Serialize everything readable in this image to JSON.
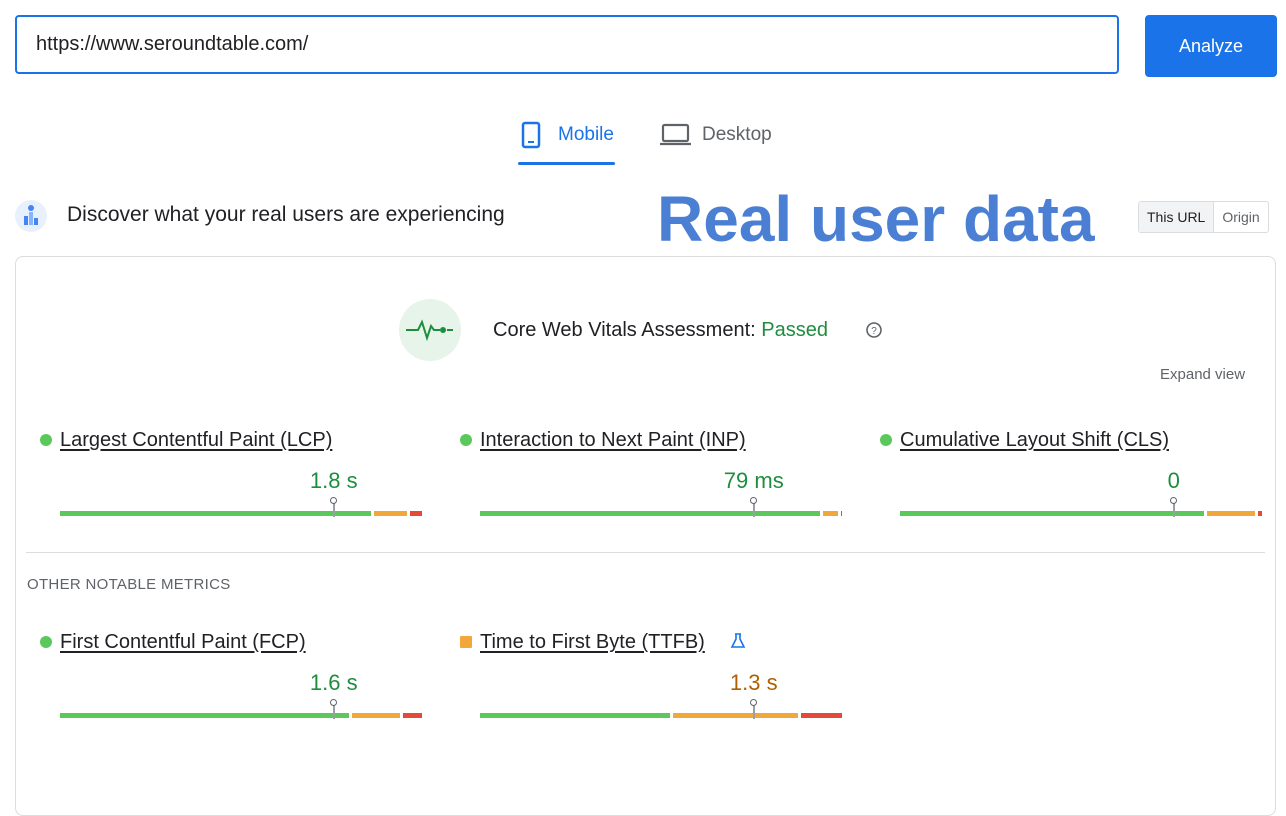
{
  "search": {
    "url": "https://www.seroundtable.com/",
    "button": "Analyze"
  },
  "tabs": [
    {
      "label": "Mobile",
      "active": true
    },
    {
      "label": "Desktop",
      "active": false
    }
  ],
  "header": {
    "title": "Discover what your real users are experiencing",
    "overlay": "Real user data",
    "toggle": [
      "This URL",
      "Origin"
    ]
  },
  "assessment": {
    "label": "Core Web Vitals Assessment:",
    "result": "Passed",
    "expand": "Expand view"
  },
  "core_metrics": [
    {
      "name": "Largest Contentful Paint (LCP)",
      "value": "1.8 s",
      "color": "#1e8e3e",
      "indicator": "circle",
      "distribution": [
        86,
        10,
        4
      ]
    },
    {
      "name": "Interaction to Next Paint (INP)",
      "value": "79 ms",
      "color": "#1e8e3e",
      "indicator": "circle",
      "distribution": [
        94,
        5,
        1
      ]
    },
    {
      "name": "Cumulative Layout Shift (CLS)",
      "value": "0",
      "color": "#1e8e3e",
      "indicator": "circle",
      "distribution": [
        84,
        14,
        2
      ]
    }
  ],
  "other": {
    "heading": "OTHER NOTABLE METRICS",
    "metrics": [
      {
        "name": "First Contentful Paint (FCP)",
        "value": "1.6 s",
        "color": "#1e8e3e",
        "indicator": "circle",
        "distribution": [
          80,
          14,
          6
        ]
      },
      {
        "name": "Time to First Byte (TTFB)",
        "value": "1.3 s",
        "color": "#b06000",
        "indicator": "square",
        "distribution": [
          53,
          35,
          12
        ]
      }
    ]
  }
}
